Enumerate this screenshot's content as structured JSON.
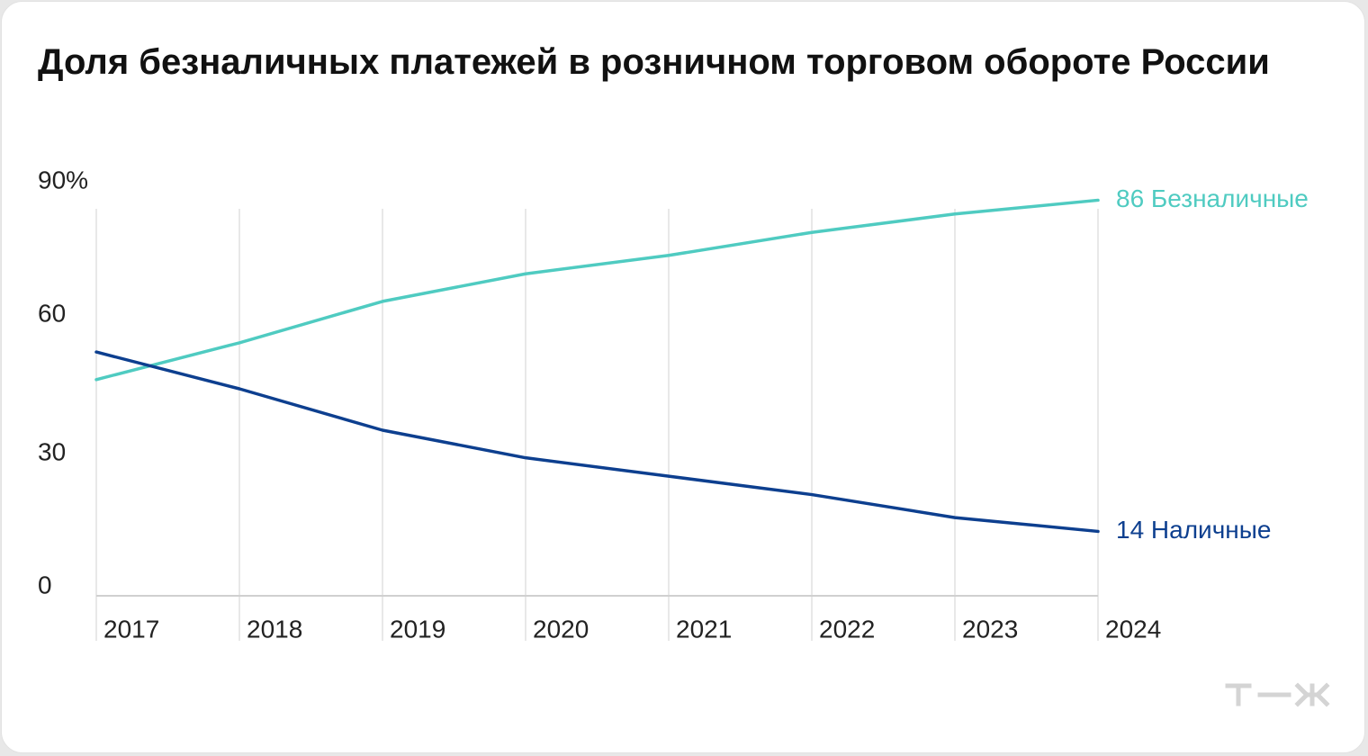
{
  "chart_data": {
    "type": "line",
    "title": "Доля безналичных платежей в розничном торговом обороте России",
    "categories": [
      "2017",
      "2018",
      "2019",
      "2020",
      "2021",
      "2022",
      "2023",
      "2024"
    ],
    "series": [
      {
        "name": "Безналичные",
        "color": "#4fcbc1",
        "values": [
          47,
          55,
          64,
          70,
          74,
          79,
          83,
          86
        ],
        "end_value_label": "86"
      },
      {
        "name": "Наличные",
        "color": "#0d3f8f",
        "values": [
          53,
          45,
          36,
          30,
          26,
          22,
          17,
          14
        ],
        "end_value_label": "14"
      }
    ],
    "y_ticks": [
      "0",
      "30",
      "60",
      "90%"
    ],
    "y_tick_values": [
      0,
      30,
      60,
      90
    ],
    "ylim": [
      0,
      90
    ],
    "xlabel": "",
    "ylabel": "",
    "grid": "vertical"
  },
  "brand": {
    "logo_text": "т—ж",
    "logo_color": "#d4d4d4"
  }
}
